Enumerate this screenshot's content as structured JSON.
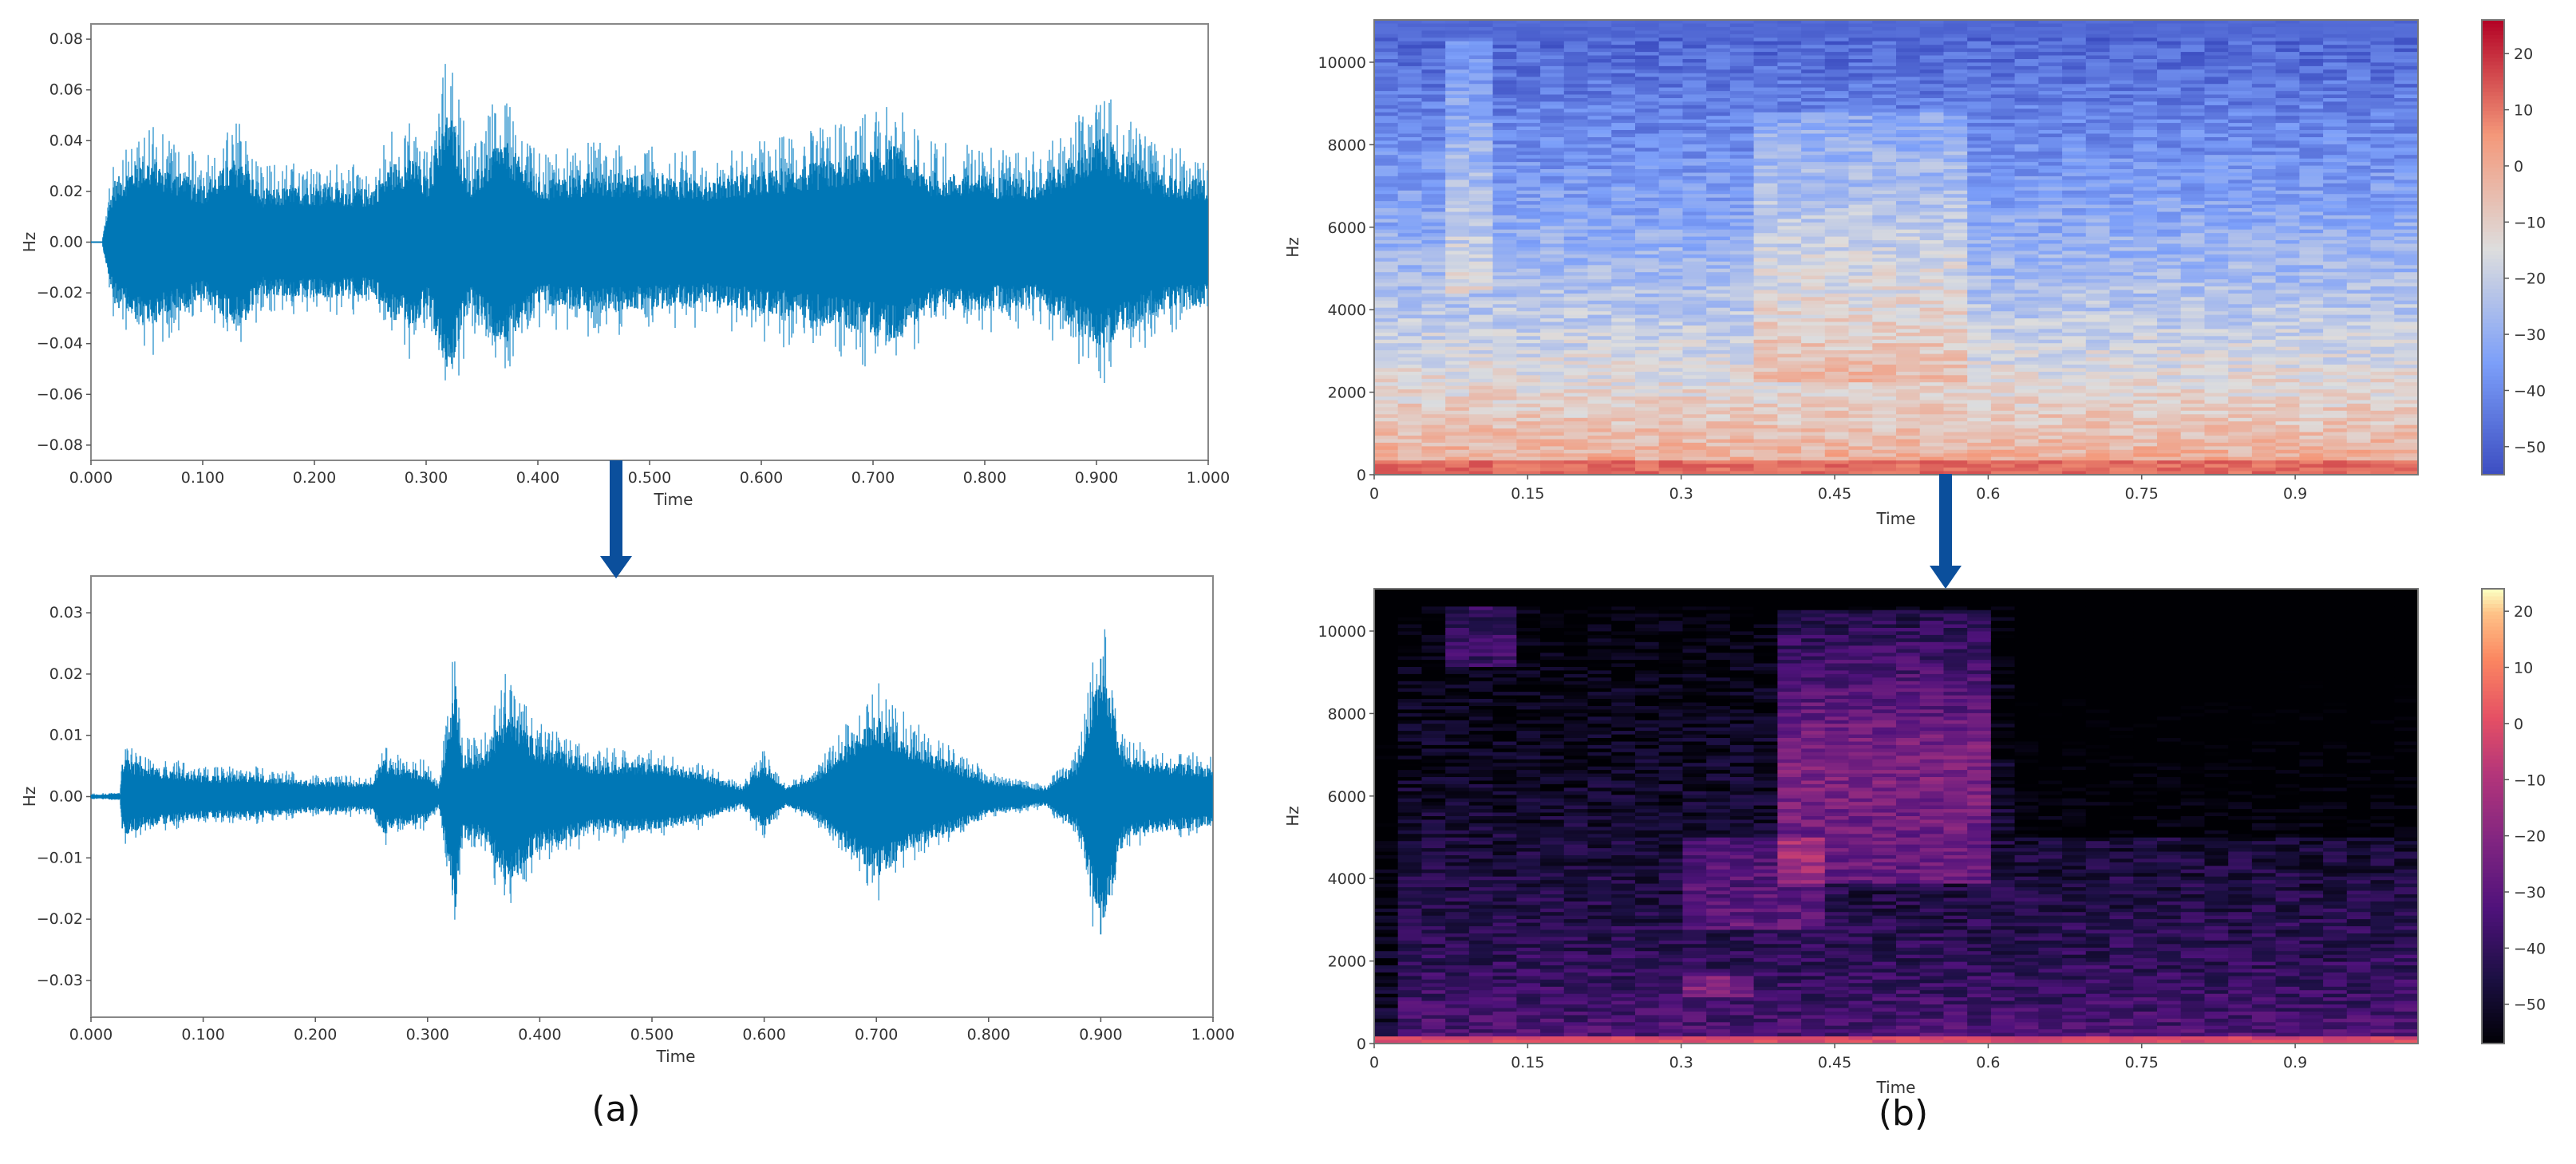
{
  "figure": {
    "captions": {
      "a": "(a)",
      "b": "(b)"
    },
    "arrow_color": "#0b4f9c"
  },
  "chart_data": [
    {
      "id": "waveform_raw",
      "type": "line",
      "title": "",
      "xlabel": "Time",
      "ylabel": "Hz",
      "xlim": [
        0.0,
        1.0
      ],
      "ylim": [
        -0.086,
        0.086
      ],
      "xticks": [
        "0.000",
        "0.100",
        "0.200",
        "0.300",
        "0.400",
        "0.500",
        "0.600",
        "0.700",
        "0.800",
        "0.900",
        "1.000"
      ],
      "yticks": [
        "0.08",
        "0.06",
        "0.04",
        "0.02",
        "0.00",
        "-0.02",
        "-0.04",
        "-0.06",
        "-0.08"
      ],
      "color": "#0077b6",
      "envelope": {
        "x": [
          0.0,
          0.01,
          0.02,
          0.05,
          0.1,
          0.135,
          0.15,
          0.2,
          0.25,
          0.27,
          0.29,
          0.3,
          0.32,
          0.34,
          0.36,
          0.37,
          0.4,
          0.45,
          0.5,
          0.55,
          0.6,
          0.65,
          0.7,
          0.72,
          0.75,
          0.8,
          0.85,
          0.9,
          0.905,
          0.95,
          1.0
        ],
        "amplitude": [
          0.0,
          0.0,
          0.035,
          0.048,
          0.033,
          0.05,
          0.03,
          0.032,
          0.03,
          0.045,
          0.048,
          0.035,
          0.078,
          0.035,
          0.055,
          0.058,
          0.035,
          0.04,
          0.038,
          0.036,
          0.04,
          0.045,
          0.052,
          0.055,
          0.04,
          0.038,
          0.036,
          0.058,
          0.06,
          0.04,
          0.035
        ]
      }
    },
    {
      "id": "waveform_denoised",
      "type": "line",
      "title": "",
      "xlabel": "Time",
      "ylabel": "Hz",
      "xlim": [
        0.0,
        1.0
      ],
      "ylim": [
        -0.036,
        0.036
      ],
      "xticks": [
        "0.000",
        "0.100",
        "0.200",
        "0.300",
        "0.400",
        "0.500",
        "0.600",
        "0.700",
        "0.800",
        "0.900",
        "1.000"
      ],
      "yticks": [
        "0.03",
        "0.02",
        "0.01",
        "0.00",
        "-0.01",
        "-0.02",
        "-0.03"
      ],
      "color": "#0077b6",
      "envelope": {
        "x": [
          0.0,
          0.026,
          0.028,
          0.05,
          0.1,
          0.15,
          0.2,
          0.25,
          0.26,
          0.27,
          0.3,
          0.31,
          0.325,
          0.33,
          0.35,
          0.37,
          0.4,
          0.45,
          0.5,
          0.55,
          0.58,
          0.6,
          0.62,
          0.65,
          0.68,
          0.7,
          0.72,
          0.75,
          0.78,
          0.8,
          0.85,
          0.88,
          0.9,
          0.92,
          0.95,
          1.0
        ],
        "amplitude": [
          0.0005,
          0.0008,
          0.009,
          0.007,
          0.005,
          0.005,
          0.0035,
          0.0035,
          0.009,
          0.007,
          0.006,
          0.002,
          0.027,
          0.01,
          0.01,
          0.021,
          0.012,
          0.008,
          0.008,
          0.005,
          0.002,
          0.008,
          0.002,
          0.006,
          0.014,
          0.019,
          0.015,
          0.01,
          0.007,
          0.004,
          0.002,
          0.008,
          0.033,
          0.01,
          0.008,
          0.007
        ]
      }
    },
    {
      "id": "spectrogram_raw",
      "type": "heatmap",
      "colormap": "coolwarm",
      "xlabel": "Time",
      "ylabel": "Hz",
      "xlim": [
        0.0,
        1.02
      ],
      "ylim": [
        0,
        11025
      ],
      "xticks": [
        "0",
        "0.15",
        "0.3",
        "0.45",
        "0.6",
        "0.75",
        "0.9"
      ],
      "yticks": [
        "0",
        "2000",
        "4000",
        "6000",
        "8000",
        "10000"
      ],
      "colorbar": {
        "ticks": [
          "20",
          "10",
          "0",
          "-10",
          "-20",
          "-30",
          "-40",
          "-50"
        ],
        "range": [
          -55,
          26
        ]
      },
      "description": "High energy (-5 to +10 dB, orange/red) below ~2000 Hz; mid frequencies near -20 dB; upper frequencies -35 to -50 dB (blue); brighter column near t=0.08 and broad lighter region 0.35-0.55 s"
    },
    {
      "id": "spectrogram_denoised",
      "type": "heatmap",
      "colormap": "magma",
      "xlabel": "Time",
      "ylabel": "Hz",
      "xlim": [
        0.0,
        1.02
      ],
      "ylim": [
        0,
        11025
      ],
      "xticks": [
        "0",
        "0.15",
        "0.3",
        "0.45",
        "0.6",
        "0.75",
        "0.9"
      ],
      "yticks": [
        "0",
        "2000",
        "4000",
        "6000",
        "8000",
        "10000"
      ],
      "colorbar": {
        "ticks": [
          "20",
          "10",
          "0",
          "-10",
          "-20",
          "-30",
          "-40",
          "-50"
        ],
        "range": [
          -57,
          24
        ]
      },
      "description": "Mostly black (<-50 dB) background; magenta/pink energy at low frequencies; bright blob 0.37-0.58 s from 4000-10000 Hz; patch near t=0.05-0.12 s at 9000-10500 Hz; hot spot ~1400 Hz at t=0.33 s"
    }
  ]
}
